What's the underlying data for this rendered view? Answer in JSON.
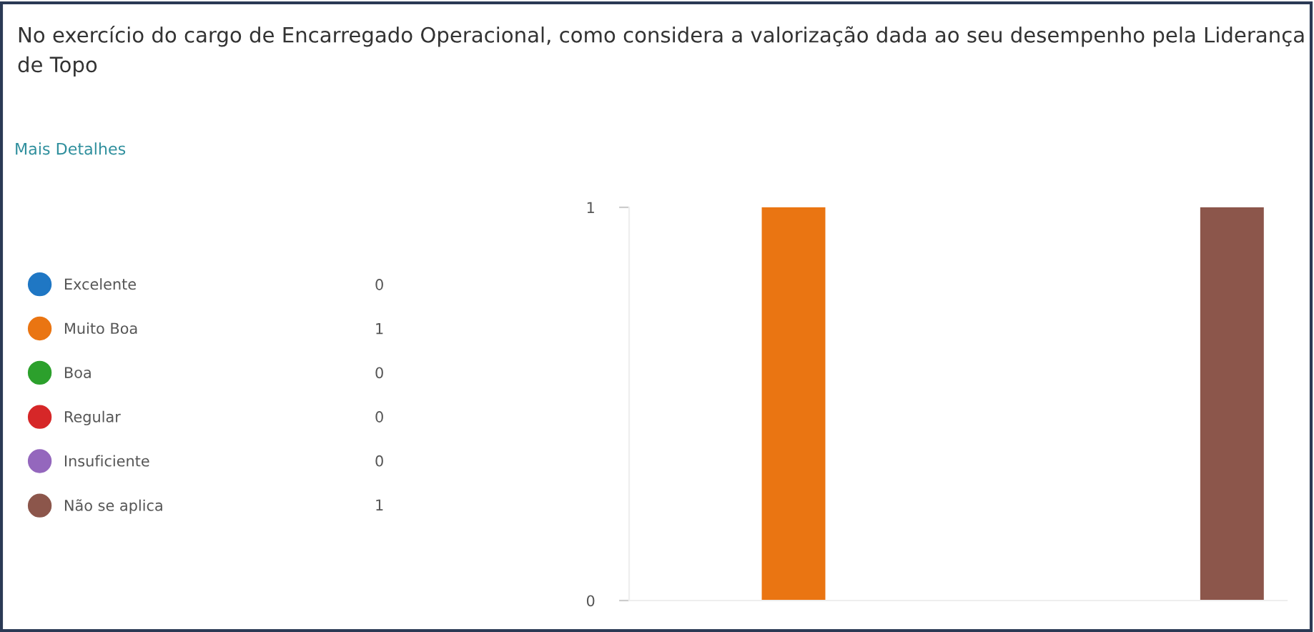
{
  "chart_data": {
    "type": "bar",
    "title": "No exercício do cargo de Encarregado Operacional, como considera a valorização dada ao seu desempenho pela Liderança de Topo",
    "annotations": [
      "Mais Detalhes",
      "0",
      "1",
      "0",
      "0",
      "0",
      "1"
    ],
    "categories": [
      null
    ],
    "series": [
      {
        "name": "Excelente",
        "color": "#1f77c4",
        "values": [
          0
        ]
      },
      {
        "name": "Muito Boa",
        "color": "#ea7512",
        "values": [
          1
        ]
      },
      {
        "name": "Boa",
        "color": "#2ca02c",
        "values": [
          0
        ]
      },
      {
        "name": "Regular",
        "color": "#d62728",
        "values": [
          0
        ]
      },
      {
        "name": "Insuficiente",
        "color": "#9467bd",
        "values": [
          0
        ]
      },
      {
        "name": "Não se aplica",
        "color": "#8c564b",
        "values": [
          1
        ]
      }
    ],
    "ylim": [
      0,
      1
    ],
    "yticks": [
      0,
      1
    ],
    "tick_labels": "y",
    "legend": "left",
    "grid": false
  }
}
